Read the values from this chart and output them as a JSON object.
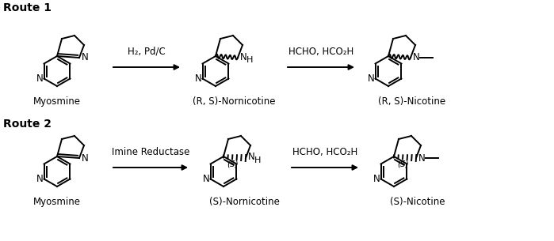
{
  "background": "#ffffff",
  "route1_label": "Route 1",
  "route2_label": "Route 2",
  "arrow1_reagents_line1": "H₂, Pd/C",
  "arrow2_reagents_line1": "HCHO, HCO₂H",
  "arrow3_reagents_line1": "Imine Reductase",
  "arrow4_reagents_line1": "HCHO, HCO₂H",
  "mol1_label": "Myosmine",
  "mol2_label": "(R, S)-Nornicotine",
  "mol3_label": "(R, S)-Nicotine",
  "mol4_label": "Myosmine",
  "mol5_label": "(S)-Nornicotine",
  "mol6_label": "(S)-Nicotine",
  "lw": 1.4
}
